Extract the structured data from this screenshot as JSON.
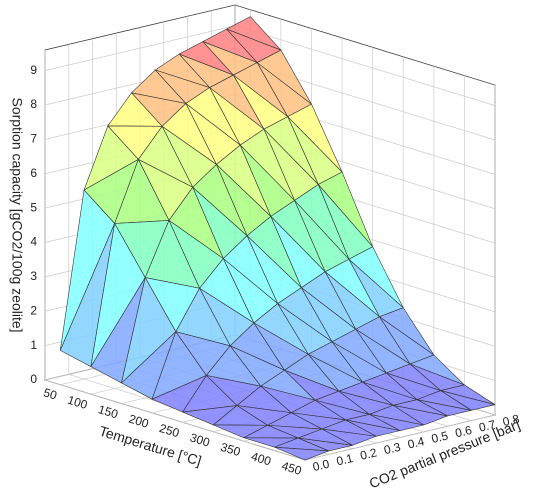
{
  "chart_data": {
    "type": "surface3d",
    "x_label": "Temperature [°C]",
    "y_label": "CO2 partial pressure [bar]",
    "z_label": "Sorption capacity [gCO2/100g zeolite]",
    "x": [
      50,
      100,
      150,
      200,
      250,
      300,
      350,
      400,
      450
    ],
    "y": [
      0,
      0.1,
      0.2,
      0.3,
      0.4,
      0.5,
      0.6,
      0.7,
      0.8
    ],
    "z": [
      [
        1.0,
        5.5,
        7.2,
        8.0,
        8.5,
        8.8,
        9.0,
        9.2,
        9.4
      ],
      [
        0.8,
        4.8,
        6.5,
        7.3,
        7.8,
        8.1,
        8.3,
        8.5,
        8.7
      ],
      [
        0.6,
        3.5,
        5.0,
        5.8,
        6.3,
        6.7,
        7.0,
        7.2,
        7.4
      ],
      [
        0.4,
        2.2,
        3.3,
        4.0,
        4.5,
        4.9,
        5.2,
        5.5,
        5.7
      ],
      [
        0.3,
        1.2,
        1.9,
        2.4,
        2.8,
        3.1,
        3.4,
        3.6,
        3.8
      ],
      [
        0.2,
        0.6,
        1.0,
        1.3,
        1.6,
        1.8,
        2.0,
        2.2,
        2.3
      ],
      [
        0.1,
        0.3,
        0.5,
        0.7,
        0.8,
        0.9,
        1.0,
        1.1,
        1.2
      ],
      [
        0.1,
        0.2,
        0.3,
        0.4,
        0.4,
        0.5,
        0.5,
        0.6,
        0.6
      ],
      [
        0.0,
        0.1,
        0.1,
        0.2,
        0.2,
        0.2,
        0.3,
        0.3,
        0.3
      ]
    ],
    "xlim": [
      25,
      450
    ],
    "ylim": [
      0,
      0.8
    ],
    "zlim": [
      0,
      9.6
    ],
    "xticks": [
      50,
      100,
      150,
      200,
      250,
      300,
      350,
      400,
      450
    ],
    "yticks": [
      {
        "value": 0,
        "label": "0.0"
      },
      0.1,
      0.2,
      0.3,
      0.4,
      0.5,
      0.6,
      0.7,
      0.8
    ],
    "zticks": [
      0,
      1,
      2,
      3,
      4,
      5,
      6,
      7,
      8,
      9
    ],
    "grid": true,
    "colormap": [
      "#8080ff",
      "#80a8ff",
      "#80d0ff",
      "#80ffff",
      "#80ffc0",
      "#a8ff80",
      "#d8ff80",
      "#ffff80",
      "#ffc080",
      "#ff8080"
    ]
  }
}
